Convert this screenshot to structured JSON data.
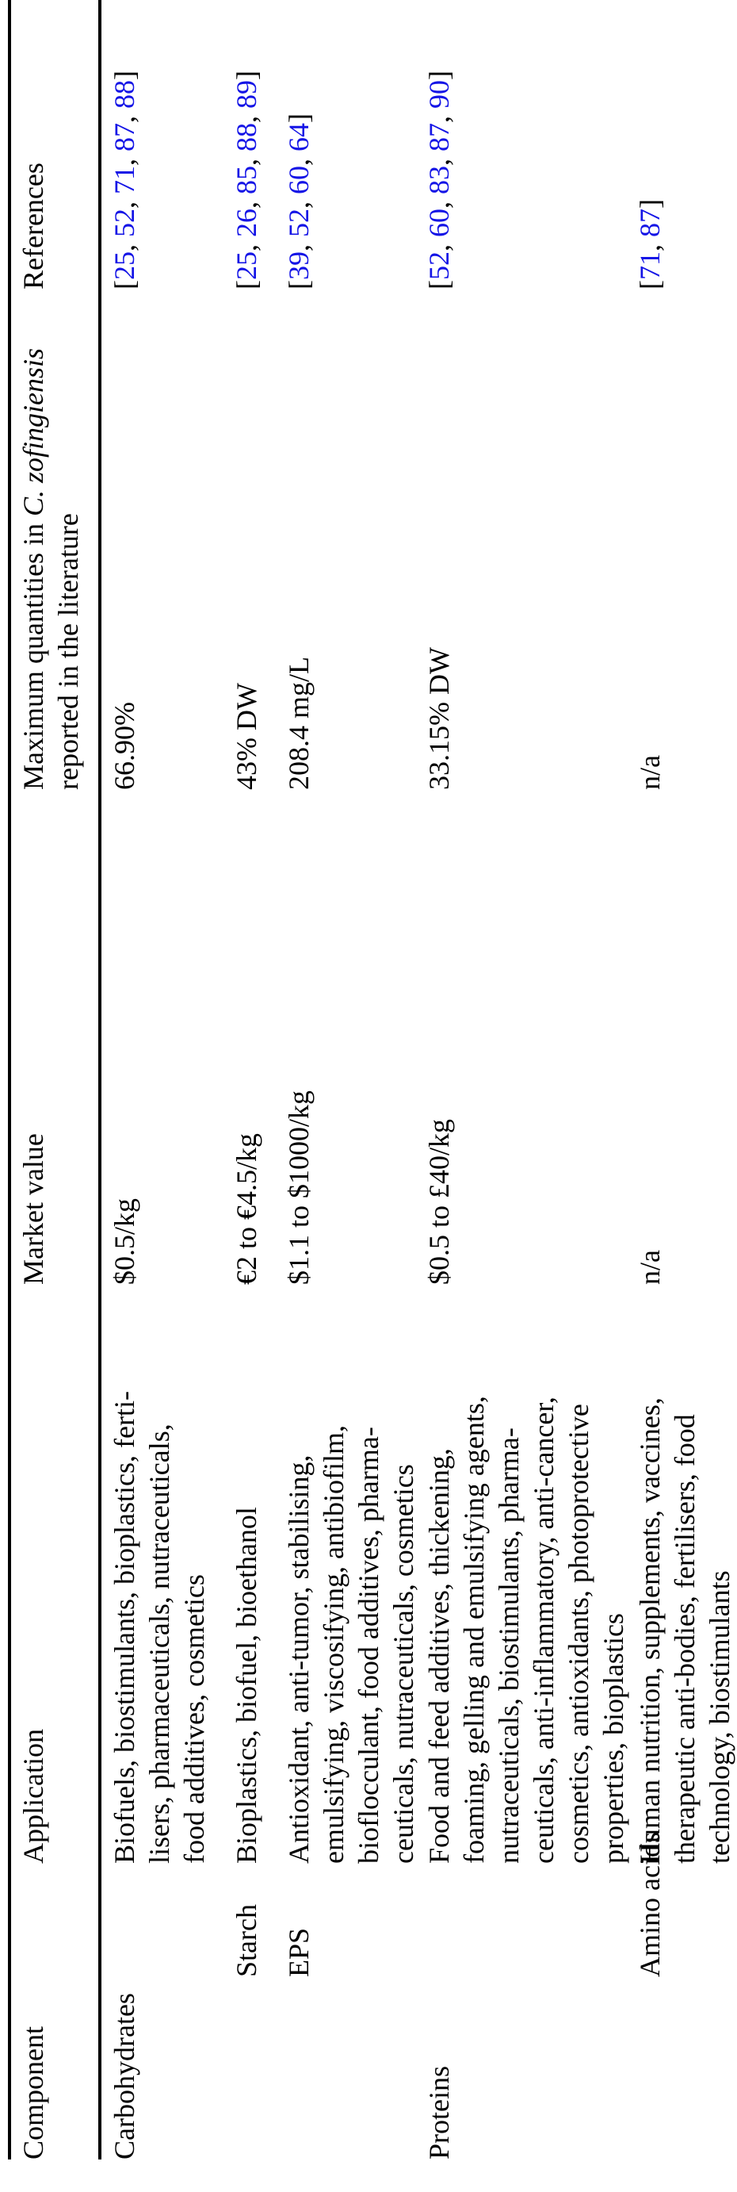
{
  "page": {
    "background_color": "#ffffff",
    "text_color": "#000000",
    "rule_color": "#000000",
    "citation_color": "#1414e6",
    "orientation": "rotated-90-ccw"
  },
  "table": {
    "headers": {
      "component": "Component",
      "application": "Application",
      "market_value": "Market value",
      "max_quantities_prefix": "Maximum quantities in ",
      "max_quantities_species": "C. zofingiensis",
      "max_quantities_line2": "reported in the literature",
      "references": "References"
    },
    "rows": [
      {
        "component": "Carbohydrates",
        "indent": false,
        "application_lines": [
          "Biofuels, biostimulants, bioplastics, ferti-",
          "lisers, pharmaceuticals, nutraceuticals,",
          "food additives, cosmetics"
        ],
        "market_value": "$0.5/kg",
        "max_quantity": "66.90%",
        "references": [
          25,
          52,
          71,
          87,
          88
        ]
      },
      {
        "component": "Starch",
        "indent": true,
        "application_lines": [
          "Bioplastics, biofuel, bioethanol"
        ],
        "market_value": "€2 to €4.5/kg",
        "max_quantity": "43% DW",
        "references": [
          25,
          26,
          85,
          88,
          89
        ]
      },
      {
        "component": "EPS",
        "indent": true,
        "application_lines": [
          "Antioxidant, anti-tumor, stabilising,",
          "emulsifying, viscosifying, antibiofilm,",
          "bioflocculant, food additives, pharma-",
          "ceuticals, nutraceuticals, cosmetics"
        ],
        "market_value": "$1.1 to $1000/kg",
        "max_quantity": "208.4 mg/L",
        "references": [
          39,
          52,
          60,
          64
        ]
      },
      {
        "component": "Proteins",
        "indent": false,
        "application_lines": [
          "Food and feed additives, thickening,",
          "foaming, gelling and emulsifying agents,",
          "nutraceuticals, biostimulants, pharma-",
          "ceuticals, anti-inflammatory, anti-cancer,",
          "cosmetics, antioxidants, photoprotective",
          "properties, bioplastics"
        ],
        "market_value": "$0.5 to £40/kg",
        "max_quantity": "33.15% DW",
        "references": [
          52,
          60,
          83,
          87,
          90
        ]
      },
      {
        "component": "Amino acids",
        "indent": true,
        "application_lines": [
          "Human nutrition, supplements, vaccines,",
          "therapeutic anti-bodies, fertilisers, food",
          "technology, biostimulants"
        ],
        "market_value": "n/a",
        "max_quantity": "n/a",
        "references": [
          71,
          87
        ]
      }
    ]
  }
}
